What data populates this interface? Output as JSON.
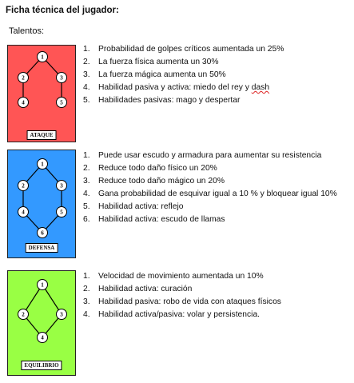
{
  "title": "Ficha técnica del jugador:",
  "subtitle": "Talentos:",
  "cards": [
    {
      "label": "ATAQUE",
      "color": "#ff5555",
      "nodes": [
        "1",
        "2",
        "3",
        "4",
        "5"
      ],
      "items": [
        {
          "num": "1.",
          "text": "Probabilidad de golpes críticos aumentada un 25%"
        },
        {
          "num": "2.",
          "text": "La fuerza física aumenta un 30%"
        },
        {
          "num": "3.",
          "text": "La fuerza mágica aumenta un 50%"
        },
        {
          "num": "4.",
          "text": "Habilidad pasiva y activa: miedo del rey y ",
          "extra": "dash"
        },
        {
          "num": "5.",
          "text": "Habilidades pasivas: mago y despertar"
        }
      ]
    },
    {
      "label": "DEFENSA",
      "color": "#3399ff",
      "nodes": [
        "1",
        "2",
        "3",
        "4",
        "5",
        "6"
      ],
      "items": [
        {
          "num": "1.",
          "text": "Puede usar escudo y armadura para aumentar su resistencia"
        },
        {
          "num": "2.",
          "text": "Reduce todo daño físico un 20%"
        },
        {
          "num": "3.",
          "text": "Reduce todo daño mágico un 20%"
        },
        {
          "num": "4.",
          "text": "Gana probabilidad de esquivar igual a 10 % y bloquear igual 10%"
        },
        {
          "num": "5.",
          "text": "Habilidad activa: reflejo"
        },
        {
          "num": "6.",
          "text": "Habilidad activa: escudo de llamas"
        }
      ]
    },
    {
      "label": "EQUILIBRIO",
      "color": "#99ff44",
      "nodes": [
        "1",
        "2",
        "3",
        "4"
      ],
      "items": [
        {
          "num": "1.",
          "text": "Velocidad de movimiento aumentada un 10%"
        },
        {
          "num": "2.",
          "text": "Habilidad activa: curación"
        },
        {
          "num": "3.",
          "text": "Habilidad pasiva: robo de vida con ataques físicos"
        },
        {
          "num": "4.",
          "text": "Habilidad activa/pasiva: volar y persistencia."
        }
      ]
    }
  ]
}
